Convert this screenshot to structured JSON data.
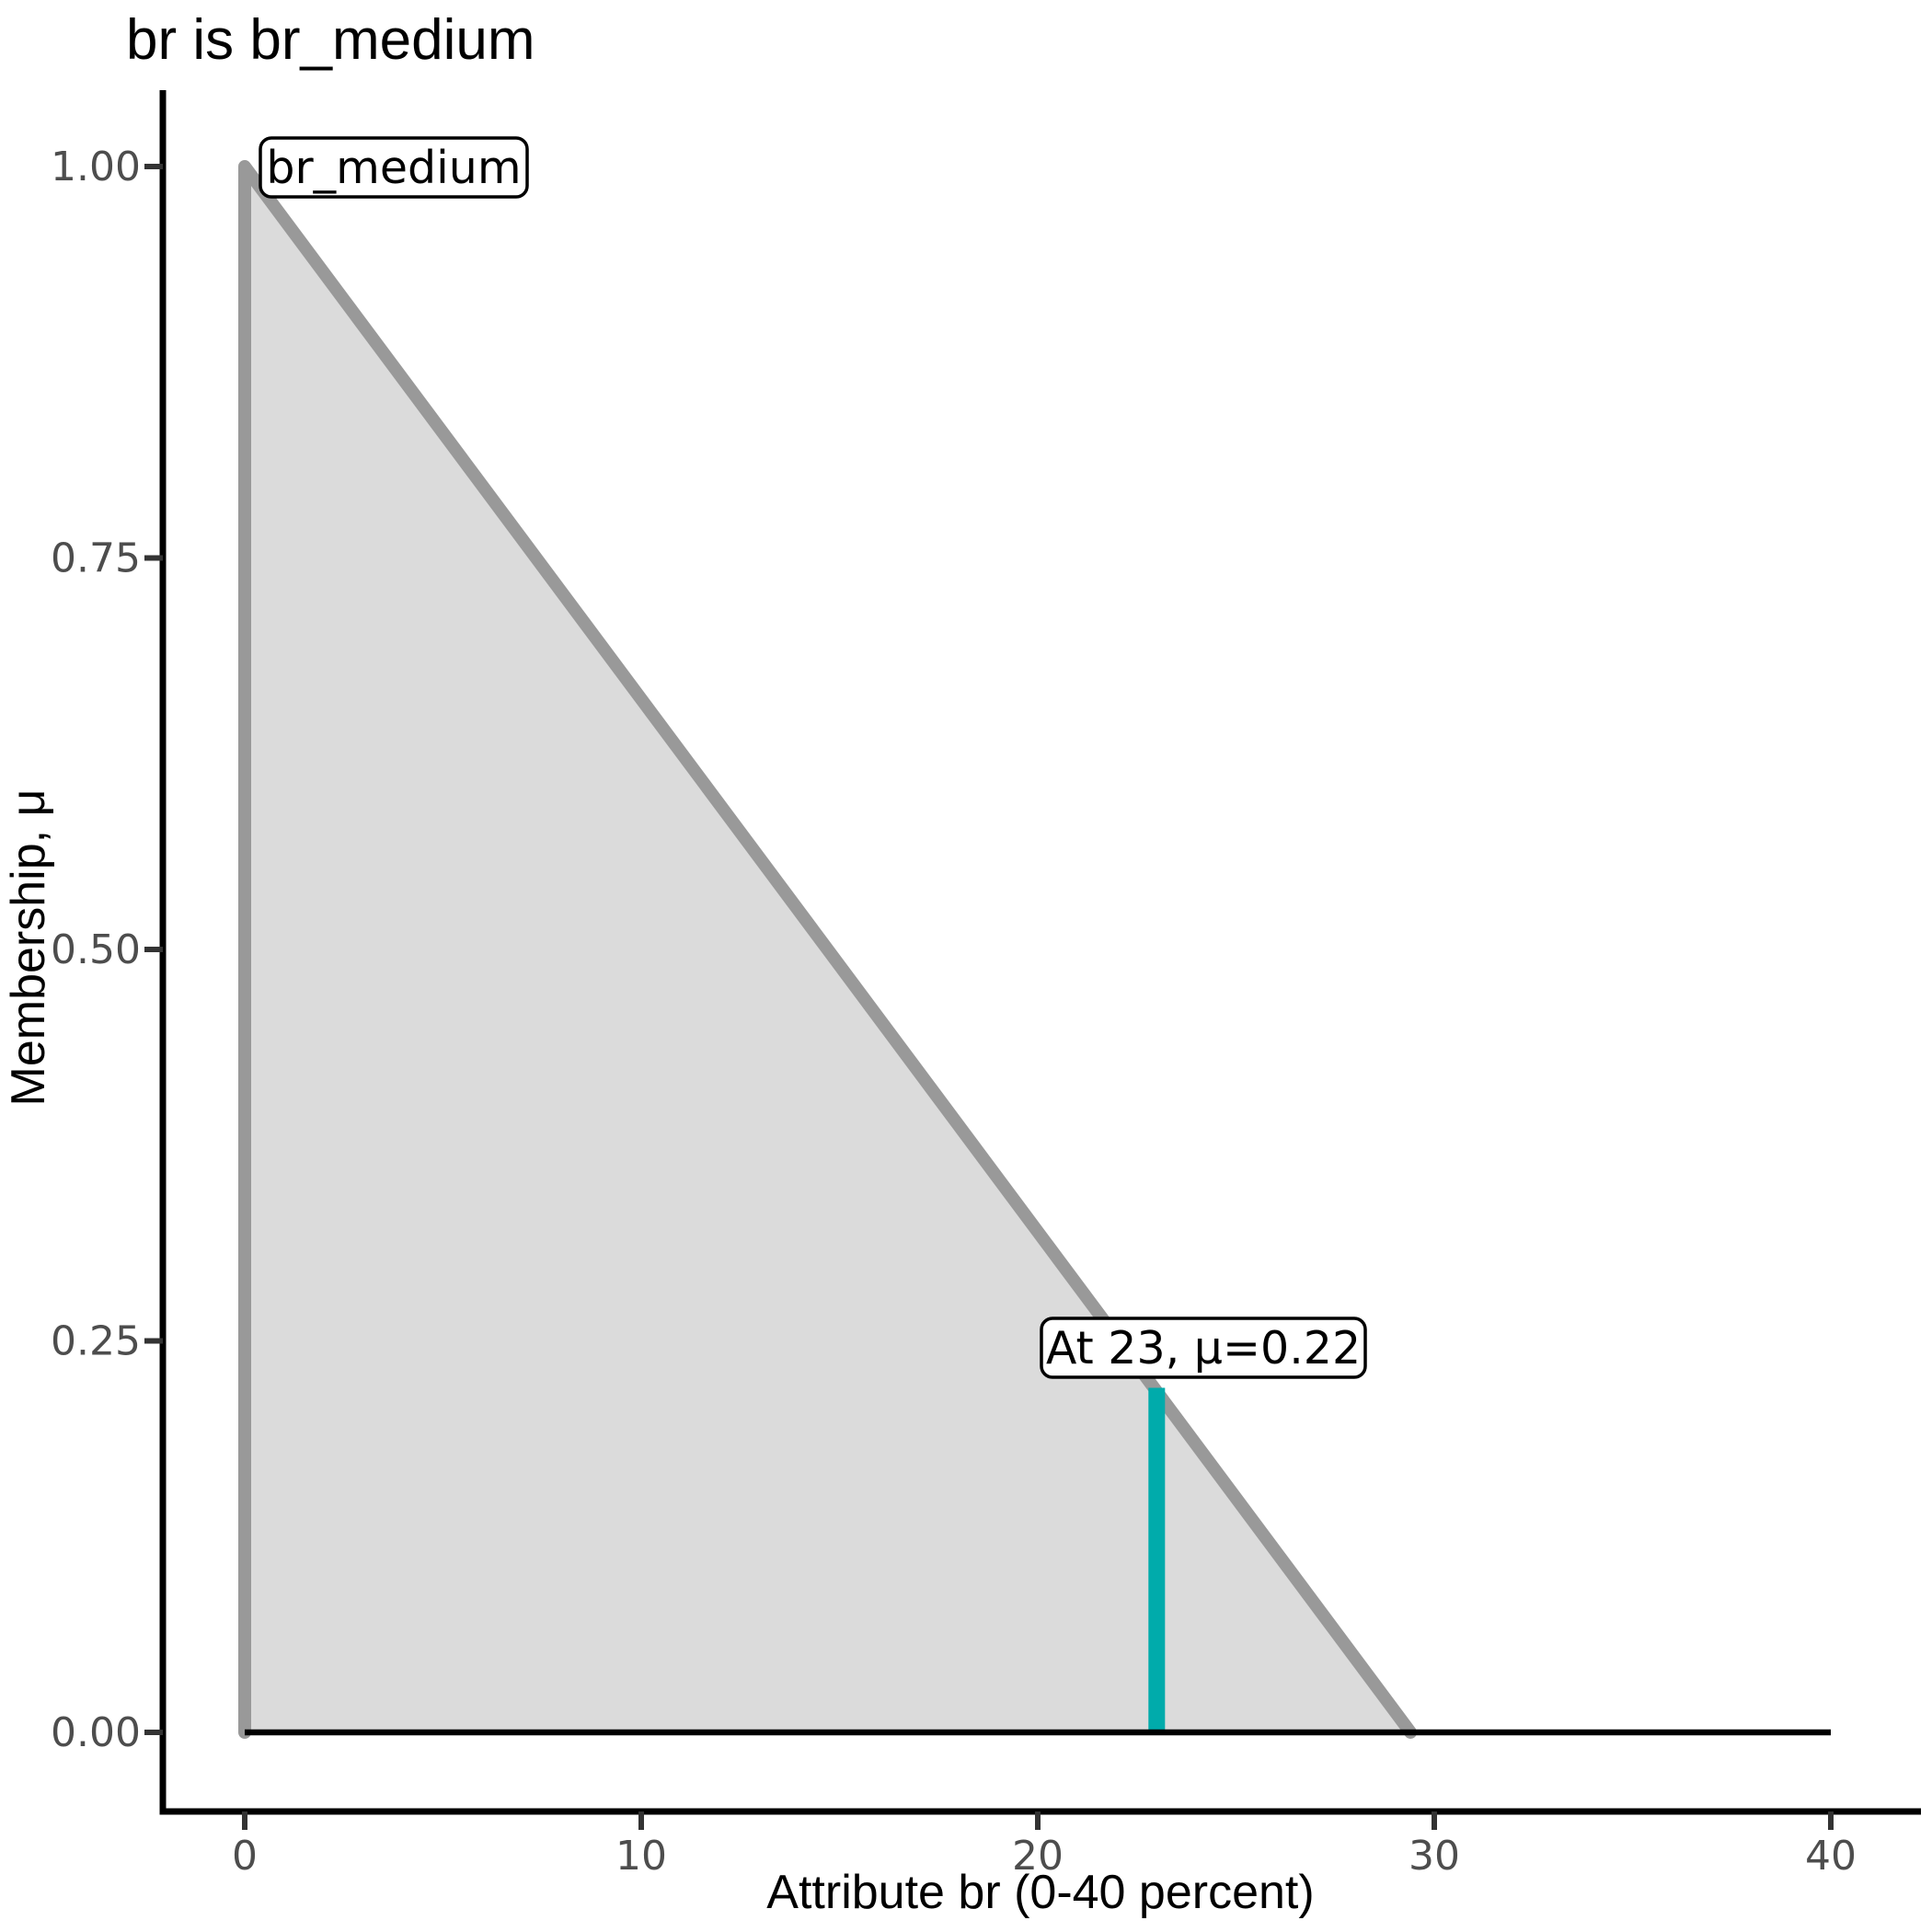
{
  "chart_data": {
    "type": "area",
    "title": "br is br_medium",
    "xlabel": "Attribute br (0-40 percent)",
    "ylabel": "Membership, μ",
    "xlim": [
      0,
      40
    ],
    "ylim": [
      0,
      1
    ],
    "grid": false,
    "legend": "none",
    "x_ticks": [
      {
        "value": 0,
        "label": "0"
      },
      {
        "value": 10,
        "label": "10"
      },
      {
        "value": 20,
        "label": "20"
      },
      {
        "value": 30,
        "label": "30"
      },
      {
        "value": 40,
        "label": "40"
      }
    ],
    "y_ticks": [
      {
        "value": 0.0,
        "label": "0.00"
      },
      {
        "value": 0.25,
        "label": "0.25"
      },
      {
        "value": 0.5,
        "label": "0.50"
      },
      {
        "value": 0.75,
        "label": "0.75"
      },
      {
        "value": 1.0,
        "label": "1.00"
      }
    ],
    "series": [
      {
        "name": "br_medium",
        "kind": "fuzzy-membership-function",
        "points": [
          [
            0,
            0
          ],
          [
            0,
            1
          ],
          [
            29.4,
            0
          ],
          [
            40,
            0
          ]
        ],
        "peak": [
          0,
          1
        ],
        "zero_crossing_x": 29.4
      }
    ],
    "marker": {
      "x": 23,
      "mu": 0.22
    },
    "annotations": [
      {
        "id": "set-label",
        "text": "br_medium"
      },
      {
        "id": "marker-label",
        "text": "At 23, μ=0.22"
      }
    ],
    "colors": {
      "membership_fill": "#DBDBDB",
      "membership_line": "#999999",
      "marker_line": "#00ABAB",
      "baseline": "#000000",
      "axis": "#000000",
      "tick_mark": "#333333",
      "tick_label": "#4D4D4D",
      "annotation_fill": "#FFFFFF",
      "annotation_border": "#000000"
    }
  }
}
